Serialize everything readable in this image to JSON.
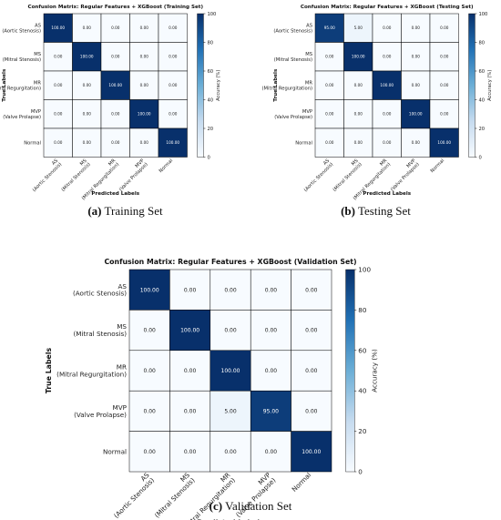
{
  "labels": [
    "AS\n(Aortic Stenosis)",
    "MS\n(Mitral Stenosis)",
    "MR\n(Mitral Regurgitation)",
    "MVP\n(Valve Prolapse)",
    "Normal"
  ],
  "chart_data": [
    {
      "type": "heatmap",
      "title": "Confusion Matrix: Regular Features + XGBoost (Training Set)",
      "xlabel": "Predicted Labels",
      "ylabel": "True Labels",
      "colorbar_label": "Accuracy (%)",
      "colorbar_ticks": [
        0,
        20,
        40,
        60,
        80,
        100
      ],
      "values": [
        [
          100,
          0,
          0,
          0,
          0
        ],
        [
          0,
          100,
          0,
          0,
          0
        ],
        [
          0,
          0,
          100,
          0,
          0
        ],
        [
          0,
          0,
          0,
          100,
          0
        ],
        [
          0,
          0,
          0,
          0,
          100
        ]
      ],
      "caption_tag": "(a)",
      "caption_text": "Training Set"
    },
    {
      "type": "heatmap",
      "title": "Confusion Matrix: Regular Features + XGBoost (Testing Set)",
      "xlabel": "Predicted Labels",
      "ylabel": "True Labels",
      "colorbar_label": "Accuracy (%)",
      "colorbar_ticks": [
        0,
        20,
        40,
        60,
        80,
        100
      ],
      "values": [
        [
          95,
          5,
          0,
          0,
          0
        ],
        [
          0,
          100,
          0,
          0,
          0
        ],
        [
          0,
          0,
          100,
          0,
          0
        ],
        [
          0,
          0,
          0,
          100,
          0
        ],
        [
          0,
          0,
          0,
          0,
          100
        ]
      ],
      "caption_tag": "(b)",
      "caption_text": "Testing Set"
    },
    {
      "type": "heatmap",
      "title": "Confusion Matrix: Regular Features + XGBoost (Validation Set)",
      "xlabel": "Predicted Labels",
      "ylabel": "True Labels",
      "colorbar_label": "Accuracy (%)",
      "colorbar_ticks": [
        0,
        20,
        40,
        60,
        80,
        100
      ],
      "values": [
        [
          100,
          0,
          0,
          0,
          0
        ],
        [
          0,
          100,
          0,
          0,
          0
        ],
        [
          0,
          0,
          100,
          0,
          0
        ],
        [
          0,
          0,
          5,
          95,
          0
        ],
        [
          0,
          0,
          0,
          0,
          100
        ]
      ],
      "caption_tag": "(c)",
      "caption_text": "Validation Set"
    }
  ]
}
